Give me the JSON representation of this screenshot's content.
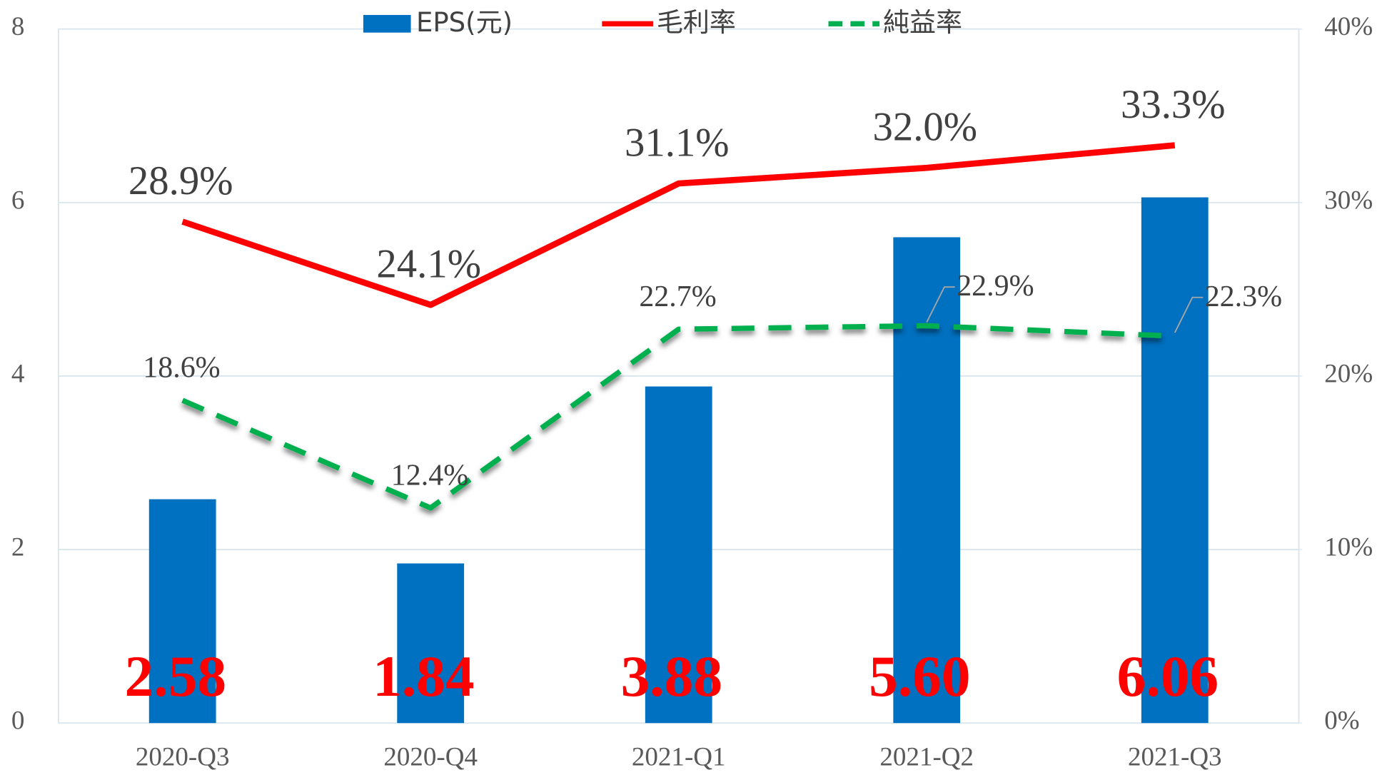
{
  "chart_data": {
    "type": "combo",
    "categories": [
      "2020-Q3",
      "2020-Q4",
      "2021-Q1",
      "2021-Q2",
      "2021-Q3"
    ],
    "series": [
      {
        "name": "EPS(元)",
        "type": "bar",
        "color": "#0070c0",
        "values": [
          2.58,
          1.84,
          3.88,
          5.6,
          6.06
        ],
        "value_labels": [
          "2.58",
          "1.84",
          "3.88",
          "5.60",
          "6.06"
        ]
      },
      {
        "name": "毛利率",
        "type": "line",
        "axis": "y2",
        "color": "#ff0000",
        "values": [
          28.9,
          24.1,
          31.1,
          32.0,
          33.3
        ],
        "value_labels": [
          "28.9%",
          "24.1%",
          "31.1%",
          "32.0%",
          "33.3%"
        ]
      },
      {
        "name": "純益率",
        "type": "line",
        "dashed": true,
        "axis": "y2",
        "color": "#00b050",
        "values": [
          18.6,
          12.4,
          22.7,
          22.9,
          22.3
        ],
        "value_labels": [
          "18.6%",
          "12.4%",
          "22.7%",
          "22.9%",
          "22.3%"
        ]
      }
    ],
    "ylim": [
      0,
      8
    ],
    "yticks": [
      0,
      2,
      4,
      6,
      8
    ],
    "y2lim": [
      0,
      40
    ],
    "y2ticks": [
      {
        "value": 0,
        "label": "0%"
      },
      {
        "value": 10,
        "label": "10%"
      },
      {
        "value": 20,
        "label": "20%"
      },
      {
        "value": 30,
        "label": "30%"
      },
      {
        "value": 40,
        "label": "40%"
      }
    ],
    "grid": true,
    "legend": "top"
  }
}
